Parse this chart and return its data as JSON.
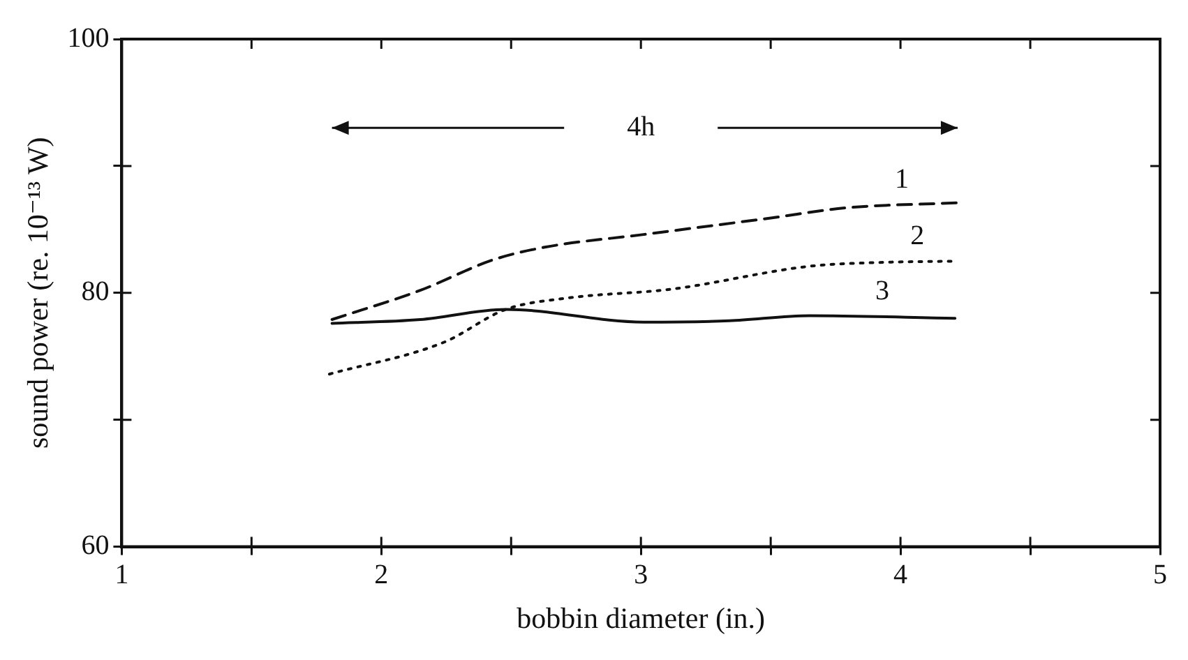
{
  "chart_data": {
    "type": "line",
    "xlabel": "bobbin diameter (in.)",
    "ylabel": "sound power (re. 10⁻¹³ W)",
    "xlim": [
      1,
      5
    ],
    "xticks": [
      1,
      {
        "value": 1.5,
        "label": null
      },
      2,
      {
        "value": 2.5,
        "label": null
      },
      3,
      {
        "value": 3.5,
        "label": null
      },
      4,
      {
        "value": 4.5,
        "label": null
      },
      5
    ],
    "ylim": [
      60,
      100
    ],
    "yticks": [
      60,
      {
        "value": 70,
        "label": null
      },
      80,
      {
        "value": 90,
        "label": null
      },
      100
    ],
    "grid": false,
    "legend": false,
    "marker": "none",
    "series": [
      {
        "name": "1",
        "color": "#111111",
        "line_style": "dashed",
        "x": [
          1.81,
          2.15,
          2.43,
          2.63,
          3.01,
          3.5,
          3.79,
          4.22
        ],
        "values": [
          77.9,
          80.2,
          82.6,
          83.6,
          84.6,
          85.9,
          86.7,
          87.1
        ]
      },
      {
        "name": "2",
        "color": "#111111",
        "line_style": "dotted",
        "x": [
          1.8,
          2.24,
          2.48,
          2.72,
          3.12,
          3.65,
          3.92,
          4.21
        ],
        "values": [
          73.6,
          76.1,
          78.7,
          79.6,
          80.3,
          82.1,
          82.4,
          82.5
        ]
      },
      {
        "name": "3",
        "color": "#111111",
        "line_style": "solid",
        "x": [
          1.81,
          2.15,
          2.48,
          3.01,
          3.34,
          3.65,
          4.21
        ],
        "values": [
          77.6,
          77.9,
          78.7,
          77.7,
          77.8,
          78.2,
          78.0
        ]
      }
    ],
    "annotations": [
      "4h"
    ]
  }
}
